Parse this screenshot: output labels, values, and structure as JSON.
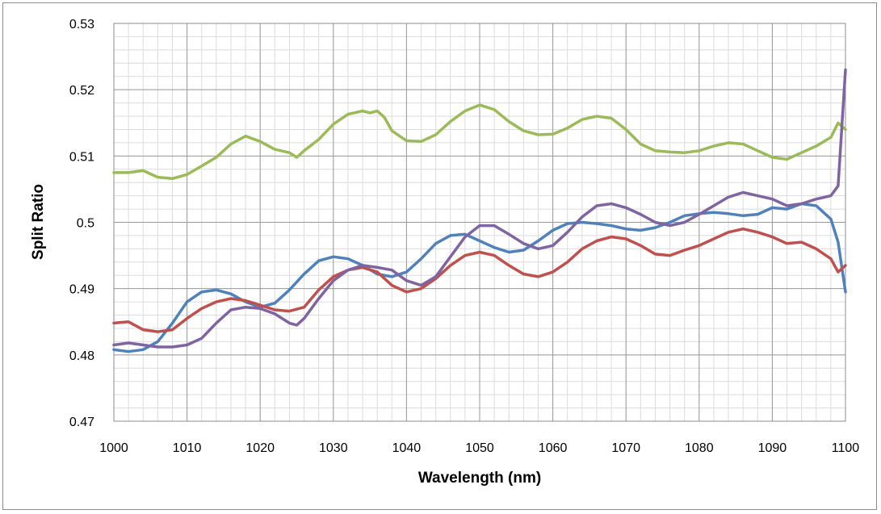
{
  "chart_data": {
    "type": "line",
    "title": "",
    "xlabel": "Wavelength (nm)",
    "ylabel": "Split Ratio",
    "xlim": [
      1000,
      1100
    ],
    "ylim": [
      0.47,
      0.53
    ],
    "x_ticks": [
      1000,
      1010,
      1020,
      1030,
      1040,
      1050,
      1060,
      1070,
      1080,
      1090,
      1100
    ],
    "x_tick_labels": [
      "1000",
      "1010",
      "1020",
      "1030",
      "1040",
      "1050",
      "1060",
      "1070",
      "1080",
      "1090",
      "1100"
    ],
    "y_ticks": [
      0.47,
      0.48,
      0.49,
      0.5,
      0.51,
      0.52,
      0.53
    ],
    "y_tick_labels": [
      "0.47",
      "0.48",
      "0.49",
      "0.5",
      "0.51",
      "0.52",
      "0.53"
    ],
    "grid": true,
    "legend": "none",
    "series": [
      {
        "color": "#9bbb59",
        "x": [
          1000,
          1002,
          1004,
          1006,
          1008,
          1010,
          1012,
          1014,
          1016,
          1018,
          1020,
          1022,
          1024,
          1025,
          1026,
          1028,
          1030,
          1032,
          1034,
          1035,
          1036,
          1037,
          1038,
          1040,
          1042,
          1044,
          1046,
          1048,
          1050,
          1052,
          1054,
          1056,
          1058,
          1060,
          1062,
          1064,
          1066,
          1068,
          1070,
          1072,
          1074,
          1076,
          1078,
          1080,
          1082,
          1084,
          1086,
          1088,
          1090,
          1092,
          1094,
          1096,
          1098,
          1099,
          1100
        ],
        "y": [
          0.5075,
          0.5075,
          0.5078,
          0.5068,
          0.5066,
          0.5072,
          0.5085,
          0.5098,
          0.5118,
          0.513,
          0.5122,
          0.511,
          0.5105,
          0.5098,
          0.5108,
          0.5125,
          0.5148,
          0.5163,
          0.5168,
          0.5165,
          0.5168,
          0.5158,
          0.5138,
          0.5123,
          0.5122,
          0.5132,
          0.5152,
          0.5168,
          0.5177,
          0.517,
          0.5152,
          0.5138,
          0.5132,
          0.5133,
          0.5142,
          0.5155,
          0.516,
          0.5157,
          0.514,
          0.5118,
          0.5108,
          0.5106,
          0.5105,
          0.5108,
          0.5115,
          0.512,
          0.5118,
          0.5108,
          0.5098,
          0.5095,
          0.5105,
          0.5115,
          0.5128,
          0.515,
          0.514
        ]
      },
      {
        "color": "#4f81bd",
        "x": [
          1000,
          1002,
          1004,
          1006,
          1008,
          1010,
          1012,
          1014,
          1016,
          1018,
          1020,
          1022,
          1024,
          1026,
          1028,
          1030,
          1032,
          1034,
          1036,
          1038,
          1040,
          1042,
          1044,
          1046,
          1048,
          1050,
          1052,
          1054,
          1056,
          1058,
          1060,
          1062,
          1064,
          1066,
          1068,
          1070,
          1072,
          1074,
          1076,
          1078,
          1080,
          1082,
          1084,
          1086,
          1088,
          1090,
          1092,
          1094,
          1096,
          1098,
          1099,
          1100
        ],
        "y": [
          0.4808,
          0.4805,
          0.4808,
          0.482,
          0.4848,
          0.488,
          0.4895,
          0.4898,
          0.4892,
          0.488,
          0.4872,
          0.4878,
          0.4898,
          0.4922,
          0.4942,
          0.4948,
          0.4945,
          0.4935,
          0.4922,
          0.4918,
          0.4925,
          0.4945,
          0.4968,
          0.498,
          0.4982,
          0.4972,
          0.4962,
          0.4955,
          0.4958,
          0.4972,
          0.4988,
          0.4998,
          0.5,
          0.4998,
          0.4995,
          0.499,
          0.4988,
          0.4992,
          0.5,
          0.501,
          0.5013,
          0.5015,
          0.5013,
          0.501,
          0.5012,
          0.5022,
          0.502,
          0.5028,
          0.5025,
          0.5005,
          0.497,
          0.4895
        ]
      },
      {
        "color": "#c0504d",
        "x": [
          1000,
          1002,
          1004,
          1006,
          1008,
          1010,
          1012,
          1014,
          1016,
          1018,
          1020,
          1022,
          1024,
          1026,
          1028,
          1030,
          1032,
          1034,
          1036,
          1038,
          1040,
          1042,
          1044,
          1046,
          1048,
          1050,
          1052,
          1054,
          1056,
          1058,
          1060,
          1062,
          1064,
          1066,
          1068,
          1070,
          1072,
          1074,
          1076,
          1078,
          1080,
          1082,
          1084,
          1086,
          1088,
          1090,
          1092,
          1094,
          1096,
          1098,
          1099,
          1100
        ],
        "y": [
          0.4848,
          0.485,
          0.4838,
          0.4835,
          0.4838,
          0.4855,
          0.487,
          0.488,
          0.4885,
          0.4882,
          0.4875,
          0.4868,
          0.4866,
          0.4872,
          0.4898,
          0.4918,
          0.4928,
          0.4932,
          0.4925,
          0.4905,
          0.4895,
          0.49,
          0.4915,
          0.4935,
          0.495,
          0.4955,
          0.495,
          0.4935,
          0.4922,
          0.4918,
          0.4925,
          0.494,
          0.496,
          0.4972,
          0.4978,
          0.4975,
          0.4965,
          0.4952,
          0.495,
          0.4958,
          0.4965,
          0.4975,
          0.4985,
          0.499,
          0.4985,
          0.4978,
          0.4968,
          0.497,
          0.496,
          0.4945,
          0.4925,
          0.4935
        ]
      },
      {
        "color": "#8064a2",
        "x": [
          1000,
          1002,
          1004,
          1006,
          1008,
          1010,
          1012,
          1014,
          1016,
          1018,
          1020,
          1022,
          1024,
          1025,
          1026,
          1028,
          1030,
          1032,
          1034,
          1036,
          1038,
          1040,
          1042,
          1044,
          1046,
          1048,
          1050,
          1052,
          1054,
          1056,
          1058,
          1060,
          1062,
          1064,
          1066,
          1068,
          1070,
          1072,
          1074,
          1076,
          1078,
          1080,
          1082,
          1084,
          1086,
          1088,
          1090,
          1092,
          1094,
          1096,
          1098,
          1099,
          1100
        ],
        "y": [
          0.4815,
          0.4818,
          0.4815,
          0.4812,
          0.4812,
          0.4815,
          0.4825,
          0.4848,
          0.4868,
          0.4872,
          0.487,
          0.4862,
          0.4848,
          0.4845,
          0.4855,
          0.4885,
          0.4912,
          0.4928,
          0.4935,
          0.4932,
          0.4928,
          0.4912,
          0.4905,
          0.4918,
          0.4948,
          0.4978,
          0.4995,
          0.4995,
          0.4982,
          0.4968,
          0.496,
          0.4965,
          0.4985,
          0.5008,
          0.5025,
          0.5028,
          0.5022,
          0.5012,
          0.5,
          0.4995,
          0.5,
          0.5012,
          0.5025,
          0.5038,
          0.5045,
          0.504,
          0.5035,
          0.5025,
          0.5028,
          0.5035,
          0.504,
          0.5055,
          0.523
        ]
      }
    ]
  }
}
